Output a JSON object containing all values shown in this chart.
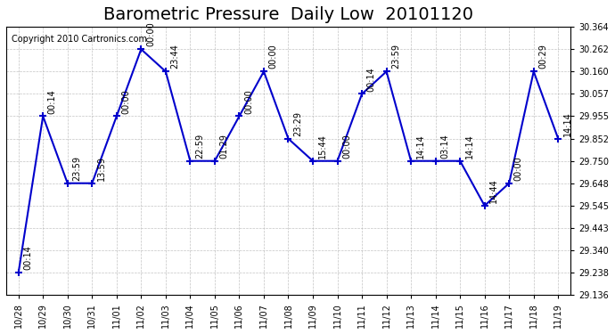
{
  "title": "Barometric Pressure  Daily Low  20101120",
  "copyright": "Copyright 2010 Cartronics.com",
  "x_labels": [
    "10/28",
    "10/29",
    "10/30",
    "10/31",
    "11/01",
    "11/02",
    "11/03",
    "11/04",
    "11/05",
    "11/06",
    "11/07",
    "11/08",
    "11/09",
    "11/10",
    "11/11",
    "11/12",
    "11/13",
    "11/14",
    "11/15",
    "11/16",
    "11/17",
    "11/18",
    "11/19"
  ],
  "y_values": [
    29.238,
    29.955,
    29.648,
    29.648,
    29.955,
    30.262,
    30.16,
    29.75,
    29.75,
    29.955,
    30.16,
    29.852,
    29.75,
    29.75,
    30.057,
    30.16,
    29.75,
    29.75,
    29.75,
    29.545,
    29.648,
    30.16,
    29.852
  ],
  "point_labels": [
    "00:14",
    "00:14",
    "23:59",
    "13:59",
    "00:00",
    "00:00",
    "23:44",
    "22:59",
    "01:29",
    "00:00",
    "00:00",
    "23:29",
    "15:44",
    "00:00",
    "00:14",
    "23:59",
    "14:14",
    "03:14",
    "14:14",
    "14:44",
    "00:00",
    "00:29",
    "14:14"
  ],
  "ylim_min": 29.136,
  "ylim_max": 30.364,
  "yticks": [
    29.136,
    29.238,
    29.34,
    29.443,
    29.545,
    29.648,
    29.75,
    29.852,
    29.955,
    30.057,
    30.16,
    30.262,
    30.364
  ],
  "line_color": "#0000cc",
  "marker_color": "#0000cc",
  "bg_color": "#ffffff",
  "grid_color": "#aaaaaa",
  "title_fontsize": 14,
  "label_fontsize": 7,
  "tick_fontsize": 7,
  "copyright_fontsize": 7
}
